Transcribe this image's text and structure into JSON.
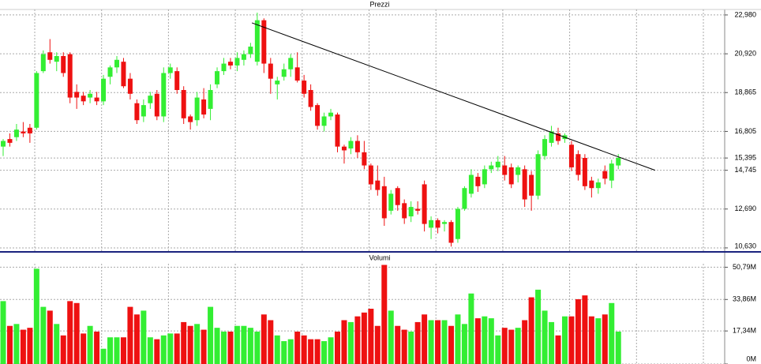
{
  "chart_data": [
    {
      "type": "candlestick",
      "title": "Prezzi",
      "up_color": "#33ee33",
      "down_color": "#ee1111",
      "grid": true,
      "ylim": [
        10460,
        23270
      ],
      "yticks": [
        {
          "value": 22980,
          "label": "22,980"
        },
        {
          "value": 20920,
          "label": "20,920"
        },
        {
          "value": 18865,
          "label": "18,865"
        },
        {
          "value": 16805,
          "label": "16,805"
        },
        {
          "value": 15395,
          "label": "15,395"
        },
        {
          "value": 14745,
          "label": "14,745"
        },
        {
          "value": 12690,
          "label": "12,690"
        },
        {
          "value": 10630,
          "label": "10,630"
        }
      ],
      "open": [
        16000,
        16400,
        16500,
        16800,
        17000,
        17000,
        20000,
        21000,
        20500,
        20800,
        20900,
        18900,
        18700,
        18600,
        18600,
        18400,
        19700,
        20200,
        20500,
        19600,
        18300,
        17600,
        18300,
        18800,
        17600,
        19900,
        20000,
        19000,
        17600,
        17400,
        18500,
        18000,
        19300,
        20000,
        20500,
        20300,
        20600,
        20900,
        20500,
        22700,
        20400,
        19300,
        19700,
        20100,
        20200,
        19500,
        19000,
        18200,
        17100,
        17600,
        17700,
        16000,
        15900,
        16300,
        15700,
        15000,
        14200,
        13900,
        12600,
        13800,
        13000,
        12300,
        12700,
        14000,
        11700,
        12100,
        11900,
        12000,
        11100,
        12700,
        13500,
        14400,
        14000,
        14800,
        14900,
        15000,
        14900,
        14500,
        14800,
        14500,
        13400,
        15500,
        16200,
        16700,
        16400,
        16100,
        15600,
        15400,
        14200,
        13800,
        14700,
        14200,
        15000
      ],
      "high": [
        16400,
        16700,
        17200,
        17300,
        17200,
        20000,
        21100,
        21700,
        21000,
        21000,
        21000,
        19300,
        18900,
        19000,
        18900,
        19800,
        20300,
        20800,
        20700,
        19900,
        18500,
        18500,
        18900,
        19000,
        20200,
        20400,
        20200,
        19200,
        17700,
        18900,
        19100,
        19300,
        20200,
        20700,
        20700,
        21000,
        21100,
        21500,
        23100,
        22800,
        20700,
        19700,
        20400,
        20900,
        21000,
        19800,
        19300,
        18300,
        17800,
        18000,
        17800,
        16100,
        16500,
        16600,
        16300,
        15100,
        15000,
        14400,
        13700,
        13900,
        13200,
        13100,
        13100,
        14200,
        12300,
        12200,
        12100,
        12100,
        12800,
        13900,
        14800,
        14600,
        15000,
        15200,
        15500,
        15500,
        15100,
        15000,
        15000,
        14700,
        15800,
        16600,
        17100,
        17000,
        16700,
        16300,
        15800,
        15600,
        14400,
        14300,
        15000,
        15300,
        15600
      ],
      "low": [
        15500,
        16000,
        16300,
        16500,
        16200,
        16900,
        19900,
        20400,
        20000,
        19700,
        18300,
        18000,
        18200,
        18300,
        18200,
        18200,
        19300,
        19900,
        19100,
        18500,
        17200,
        17300,
        18000,
        17400,
        17300,
        19600,
        18800,
        17200,
        16900,
        17100,
        17500,
        17400,
        19100,
        19800,
        20100,
        20000,
        20300,
        20700,
        20300,
        19900,
        18800,
        18500,
        19500,
        19700,
        19400,
        18600,
        17900,
        16900,
        16800,
        17400,
        15700,
        15100,
        15600,
        15400,
        14800,
        13700,
        13400,
        11800,
        12400,
        12600,
        11900,
        12000,
        12400,
        11500,
        11100,
        11400,
        11500,
        10700,
        10900,
        12600,
        13300,
        13600,
        13800,
        14600,
        14700,
        14200,
        13800,
        14100,
        12800,
        12600,
        13200,
        15300,
        16000,
        16100,
        16200,
        14700,
        14200,
        13700,
        13300,
        13500,
        14000,
        13800,
        14800
      ],
      "close": [
        16300,
        16200,
        16900,
        16700,
        16700,
        19900,
        20900,
        20600,
        20800,
        19900,
        18600,
        18600,
        18400,
        18800,
        18400,
        19600,
        20200,
        20600,
        19200,
        18800,
        17400,
        18200,
        18700,
        17600,
        19900,
        20200,
        19000,
        17500,
        17300,
        18600,
        17700,
        19000,
        20000,
        20400,
        20300,
        20700,
        20900,
        21300,
        22700,
        20400,
        19600,
        19500,
        20100,
        20700,
        19500,
        18800,
        18100,
        17100,
        17600,
        17800,
        16000,
        15800,
        16300,
        15700,
        15000,
        14000,
        13700,
        12200,
        13500,
        12900,
        12200,
        12800,
        12600,
        11900,
        12100,
        11700,
        12000,
        10900,
        12700,
        13800,
        14500,
        13900,
        14800,
        15000,
        15200,
        14500,
        14000,
        14900,
        13200,
        13400,
        15600,
        16400,
        16800,
        16300,
        16600,
        14900,
        14500,
        13900,
        13800,
        14100,
        14300,
        15100,
        15400
      ],
      "trendline": {
        "x": [
          37.2,
          97.5
        ],
        "y": [
          22560,
          14745
        ],
        "color": "#000000"
      }
    },
    {
      "type": "volume",
      "title": "Volumi",
      "up_color": "#33ee33",
      "down_color": "#ee1111",
      "grid": true,
      "ylim": [
        0,
        57.6
      ],
      "yticks": [
        {
          "value": 50.79,
          "label": "50,79M"
        },
        {
          "value": 33.86,
          "label": "33,86M"
        },
        {
          "value": 17.34,
          "label": "17,34M"
        },
        {
          "value": 0,
          "label": "0M"
        }
      ],
      "values": [
        33,
        20,
        21,
        18,
        19,
        50,
        30,
        28,
        21,
        15,
        33,
        32,
        16,
        20,
        17,
        8,
        14,
        14,
        14,
        30,
        26,
        28,
        14,
        13,
        15,
        16,
        16,
        22,
        20,
        21,
        18,
        30,
        19,
        17,
        17,
        20,
        20,
        19,
        17,
        26,
        23,
        15,
        12,
        13,
        17,
        15,
        13,
        13,
        12,
        14,
        17,
        23,
        22,
        25,
        27,
        29,
        20,
        52,
        28,
        20,
        18,
        17,
        22,
        26,
        23,
        23,
        23,
        20,
        26,
        21,
        37,
        24,
        25,
        24,
        15,
        19,
        18,
        19,
        23,
        35,
        39,
        28,
        22,
        15,
        25,
        25,
        34,
        36,
        25,
        24,
        26,
        32,
        17
      ]
    }
  ]
}
